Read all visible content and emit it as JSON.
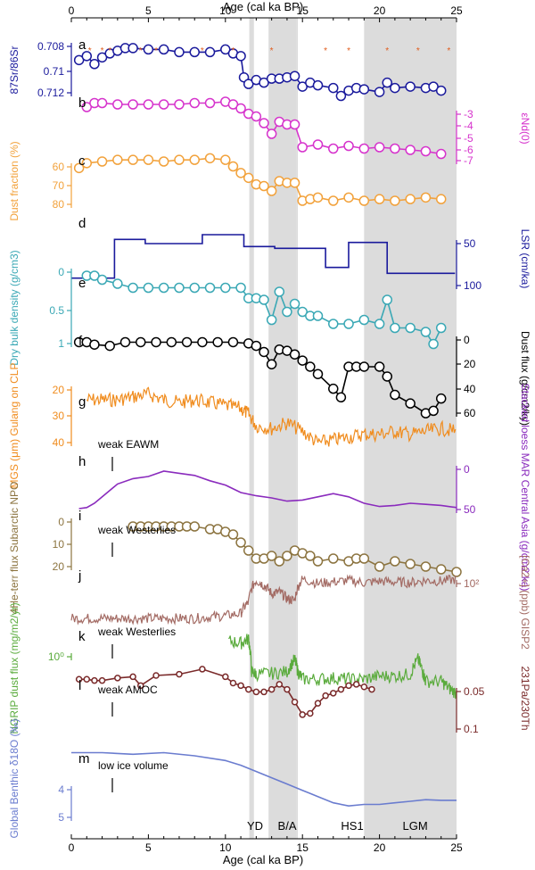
{
  "figure": {
    "top_axis_label": "Age (cal ka BP)",
    "bottom_axis_label": "Age (cal ka BP)",
    "age_ticks": [
      "0",
      "5",
      "10",
      "15",
      "20",
      "25"
    ],
    "panel_letters": [
      "a",
      "b",
      "c",
      "d",
      "e",
      "f",
      "g",
      "h",
      "i",
      "j",
      "k",
      "l",
      "m"
    ],
    "shading_labels": [
      "YD",
      "B/A",
      "HS1",
      "LGM"
    ],
    "annotations": [
      "weak EAWM",
      "weak Westerlies",
      "weak Westerlies",
      "weak AMOC",
      "low ice volume"
    ]
  },
  "chart_data": [
    {
      "id": "a",
      "type": "line",
      "ylabel": "87Sr/86Sr",
      "side": "left",
      "color": "#1a1a9c",
      "ticks": [
        "0.708",
        "0.71",
        "0.712"
      ],
      "ylim": [
        0.708,
        0.7125
      ],
      "inverted": true,
      "x": [
        0.5,
        1,
        1.5,
        2,
        2.5,
        3,
        3.5,
        4,
        5,
        6,
        7,
        8,
        9,
        10,
        10.5,
        11,
        11.2,
        11.5,
        12,
        12.5,
        13,
        13.5,
        14,
        14.5,
        15,
        15.5,
        16,
        17,
        17.5,
        18,
        18.5,
        19,
        20,
        20.5,
        21,
        22,
        23,
        23.5,
        24
      ],
      "y": [
        0.7095,
        0.7092,
        0.7098,
        0.7093,
        0.709,
        0.7088,
        0.7086,
        0.7086,
        0.7087,
        0.7087,
        0.7089,
        0.7089,
        0.7089,
        0.7087,
        0.709,
        0.7092,
        0.7108,
        0.7113,
        0.711,
        0.7112,
        0.7109,
        0.7109,
        0.7108,
        0.7107,
        0.7115,
        0.7112,
        0.7114,
        0.7116,
        0.7122,
        0.7118,
        0.7116,
        0.7117,
        0.7119,
        0.7112,
        0.7116,
        0.7115,
        0.7116,
        0.7115,
        0.7118
      ]
    },
    {
      "id": "b",
      "type": "line",
      "ylabel": "εNd(0)",
      "side": "right",
      "color": "#d633cc",
      "ticks": [
        "-3",
        "-4",
        "-5",
        "-6",
        "-7"
      ],
      "ylim": [
        -2.5,
        -7.3
      ],
      "inverted": false,
      "x": [
        1,
        1.5,
        2,
        3,
        4,
        5,
        6,
        7,
        8,
        9,
        10,
        10.5,
        11,
        11.5,
        12,
        12.5,
        13,
        13.5,
        14,
        14.5,
        15,
        16,
        17,
        18,
        19,
        20,
        21,
        22,
        23,
        24
      ],
      "y": [
        -3.3,
        -3.0,
        -3.0,
        -3.1,
        -3.1,
        -3.1,
        -3.1,
        -3.1,
        -3.0,
        -3.0,
        -2.9,
        -3.1,
        -3.4,
        -3.8,
        -4.0,
        -4.5,
        -5.3,
        -4.4,
        -4.6,
        -4.6,
        -6.3,
        -6.1,
        -6.4,
        -6.2,
        -6.4,
        -6.3,
        -6.4,
        -6.5,
        -6.6,
        -6.8
      ]
    },
    {
      "id": "c",
      "type": "line",
      "ylabel": "Dust fraction (%)",
      "side": "left",
      "color": "#f2a23c",
      "ticks": [
        "60",
        "70",
        "80"
      ],
      "ylim": [
        52,
        88
      ],
      "inverted": true,
      "x": [
        0.5,
        1,
        2,
        3,
        4,
        5,
        6,
        7,
        8,
        9,
        10,
        10.5,
        11,
        11.5,
        12,
        12.5,
        13,
        13.5,
        14,
        14.5,
        15,
        15.5,
        16,
        17,
        18,
        19,
        20,
        21,
        22,
        23,
        24
      ],
      "y": [
        62,
        59,
        58,
        57,
        57,
        57,
        58,
        57,
        57,
        56,
        57,
        61,
        65,
        68,
        72,
        73,
        76,
        70,
        71,
        71,
        82,
        81,
        80,
        82,
        80,
        82,
        81,
        82,
        81,
        80,
        81
      ]
    },
    {
      "id": "d",
      "type": "line",
      "step": true,
      "ylabel": "LSR (cm/ka)",
      "side": "right",
      "color": "#1a1a9c",
      "ticks": [
        "50",
        "100"
      ],
      "ylim": [
        15,
        120
      ],
      "inverted": true,
      "x": [
        0,
        2.8,
        2.8,
        4.8,
        4.8,
        8.5,
        8.5,
        11.2,
        11.2,
        13.2,
        13.2,
        16.5,
        16.5,
        18,
        18,
        20.5,
        20.5,
        24.9
      ],
      "y": [
        100,
        100,
        35,
        35,
        42,
        42,
        27,
        27,
        47,
        47,
        50,
        50,
        82,
        82,
        40,
        40,
        92,
        92
      ]
    },
    {
      "id": "e",
      "type": "line",
      "ylabel": "Dry bulk density (g/cm3)",
      "side": "left",
      "color": "#3aa8b5",
      "ticks": [
        "0",
        "0.5",
        "1"
      ],
      "ylim": [
        0,
        1
      ],
      "inverted": true,
      "x": [
        1,
        1.5,
        2,
        3,
        4,
        5,
        6,
        7,
        8,
        9,
        10,
        11,
        11.5,
        12,
        12.5,
        13,
        13.5,
        14,
        14.5,
        15,
        15.5,
        16,
        17,
        18,
        19,
        20,
        20.5,
        21,
        22,
        23,
        23.5,
        24
      ],
      "y": [
        0.1,
        0.1,
        0.15,
        0.2,
        0.25,
        0.25,
        0.25,
        0.25,
        0.25,
        0.25,
        0.25,
        0.25,
        0.38,
        0.38,
        0.4,
        0.65,
        0.3,
        0.55,
        0.45,
        0.55,
        0.6,
        0.6,
        0.7,
        0.7,
        0.65,
        0.7,
        0.4,
        0.75,
        0.75,
        0.8,
        0.95,
        0.75
      ]
    },
    {
      "id": "f",
      "type": "line",
      "ylabel": "Dust flux (g/cm2/ky)",
      "side": "right",
      "color": "#000000",
      "ticks": [
        "0",
        "20",
        "40",
        "60"
      ],
      "ylim": [
        -2,
        65
      ],
      "inverted": true,
      "x": [
        0.5,
        1,
        1.5,
        2.5,
        3.5,
        4.5,
        5.5,
        6.5,
        7.5,
        8.5,
        9.5,
        10.5,
        11.5,
        12,
        12.5,
        13,
        13.5,
        14,
        14.5,
        15,
        15.5,
        16,
        17,
        17.5,
        18,
        18.5,
        19,
        20,
        20.5,
        21,
        22,
        23,
        23.5,
        24
      ],
      "y": [
        2,
        2,
        4,
        5,
        2,
        2,
        2,
        2,
        2,
        2,
        2,
        2,
        3,
        5,
        10,
        20,
        8,
        9,
        12,
        17,
        22,
        28,
        40,
        47,
        22,
        22,
        22,
        22,
        30,
        45,
        52,
        60,
        58,
        48
      ]
    },
    {
      "id": "g",
      "type": "line",
      "ylabel": "MGS (μm) Gulang on CLP",
      "side": "left",
      "color": "#f08c1e",
      "ticks": [
        "20",
        "30",
        "40"
      ],
      "ylim": [
        16,
        44
      ],
      "inverted": true,
      "noise": 2.5,
      "x": [
        1,
        2,
        3,
        4,
        5,
        6,
        7,
        8,
        9,
        10,
        11,
        11.5,
        12,
        13,
        14,
        15,
        16,
        17,
        18,
        19,
        20,
        21,
        22,
        23,
        24,
        25
      ],
      "y": [
        21,
        21,
        21,
        20,
        19,
        21,
        22,
        21,
        22,
        23,
        24,
        26,
        30,
        31,
        29,
        32,
        36,
        35,
        34,
        33,
        33,
        32,
        33,
        32,
        31,
        32
      ]
    },
    {
      "id": "h",
      "type": "line",
      "step": true,
      "ylabel": "Stacked loess MAR Central Asia (g/cm2 ka)",
      "side": "right",
      "color": "#8a2bbd",
      "ticks": [
        "0",
        "50"
      ],
      "ylim": [
        -5,
        55
      ],
      "inverted": false,
      "x": [
        0.5,
        1,
        1.5,
        2,
        3,
        4,
        5,
        6,
        7,
        8,
        9,
        10,
        11,
        12,
        13,
        14,
        15,
        16,
        17,
        18,
        19,
        20,
        21,
        22,
        23,
        24,
        25
      ],
      "y": [
        45,
        44,
        40,
        34,
        22,
        17,
        15,
        10,
        12,
        14,
        19,
        23,
        30,
        33,
        35,
        38,
        37,
        34,
        31,
        34,
        40,
        43,
        42,
        40,
        41,
        42,
        44
      ]
    },
    {
      "id": "i",
      "type": "line",
      "ylabel": "4He-terr flux Subarctic NPO",
      "side": "left",
      "color": "#8c7440",
      "ticks": [
        "0",
        "10",
        "20"
      ],
      "ylim": [
        -1,
        23
      ],
      "inverted": true,
      "x": [
        4,
        4.5,
        5,
        5.5,
        6,
        6.5,
        7,
        7.5,
        8,
        9,
        9.5,
        10,
        10.5,
        11,
        11.5,
        12,
        12.5,
        13,
        13.5,
        14,
        14.5,
        15,
        15.5,
        16,
        17,
        18,
        18.5,
        19,
        20,
        21,
        22,
        23,
        24,
        25
      ],
      "y": [
        3,
        3,
        3,
        3,
        3,
        3,
        3,
        3,
        3,
        4,
        4,
        5,
        6,
        9,
        12,
        15,
        15,
        14,
        16,
        14,
        12,
        13,
        14,
        16,
        15,
        16,
        15,
        15,
        18,
        16,
        17,
        18,
        19,
        20
      ]
    },
    {
      "id": "j",
      "type": "line",
      "ylabel": "[Ca2+] (ppb) GISP2",
      "side": "right",
      "color": "#a36b64",
      "ticks": [
        "10^2"
      ],
      "ylim": [
        2,
        450
      ],
      "log": true,
      "inverted": false,
      "noise": 0.18,
      "x": [
        0,
        1,
        2,
        3,
        4,
        5,
        6,
        7,
        8,
        9,
        10,
        11,
        11.5,
        12,
        12.5,
        13,
        13.5,
        14,
        14.5,
        15,
        16,
        17,
        18,
        19,
        20,
        21,
        22,
        23,
        24,
        25
      ],
      "y": [
        8,
        8,
        8,
        8,
        8,
        8,
        8,
        8,
        8,
        9,
        10,
        12,
        30,
        180,
        120,
        60,
        70,
        40,
        35,
        200,
        140,
        160,
        180,
        150,
        170,
        160,
        150,
        180,
        170,
        200
      ]
    },
    {
      "id": "k",
      "type": "line",
      "ylabel": "NGRIP dust flux (mg/m2/yr)",
      "side": "left",
      "color": "#5aab3c",
      "ticks": [
        "10^0"
      ],
      "ylim": [
        0.08,
        1.5
      ],
      "log": true,
      "inverted": false,
      "noise": 0.12,
      "x": [
        10.2,
        11,
        11.5,
        11.7,
        12,
        13,
        14,
        14.5,
        14.7,
        15,
        16,
        17,
        18,
        19,
        20,
        21,
        22,
        22.5,
        22.8,
        23,
        24,
        24.5,
        25
      ],
      "y": [
        1.1,
        1.0,
        1.2,
        0.3,
        0.27,
        0.28,
        0.3,
        0.5,
        0.3,
        0.22,
        0.22,
        0.23,
        0.22,
        0.22,
        0.25,
        0.25,
        0.27,
        0.5,
        0.3,
        0.2,
        0.2,
        0.15,
        0.12
      ]
    },
    {
      "id": "l",
      "type": "line",
      "ylabel": "231Pa/230Th",
      "side": "right",
      "color": "#7a2a2a",
      "ticks": [
        "0.05",
        "0.1"
      ],
      "ylim": [
        0.045,
        0.105
      ],
      "inverted": true,
      "x": [
        0.5,
        1,
        1.5,
        2,
        3,
        4,
        4.5,
        5.5,
        7,
        8.5,
        10,
        10.5,
        11,
        11.5,
        12,
        12.5,
        13,
        13.5,
        14,
        14.5,
        15,
        15.5,
        16,
        16.5,
        17,
        17.5,
        18,
        18.5,
        19,
        19.5
      ],
      "y": [
        0.06,
        0.06,
        0.061,
        0.061,
        0.059,
        0.058,
        0.065,
        0.057,
        0.056,
        0.052,
        0.058,
        0.063,
        0.065,
        0.068,
        0.07,
        0.07,
        0.068,
        0.064,
        0.068,
        0.078,
        0.088,
        0.087,
        0.079,
        0.073,
        0.071,
        0.068,
        0.065,
        0.064,
        0.066,
        0.068
      ]
    },
    {
      "id": "m",
      "type": "line",
      "ylabel": "Global Benthic δ18O (‰)",
      "side": "left",
      "color": "#6a7ccf",
      "ticks": [
        "4",
        "5"
      ],
      "ylim": [
        3.2,
        5.05
      ],
      "inverted": true,
      "x": [
        0,
        2,
        4,
        6,
        8,
        10,
        11,
        12,
        13,
        14,
        15,
        16,
        17,
        18,
        19,
        20,
        21,
        22,
        23,
        24,
        25
      ],
      "y": [
        3.3,
        3.3,
        3.35,
        3.3,
        3.4,
        3.55,
        3.7,
        3.9,
        4.1,
        4.3,
        4.5,
        4.7,
        4.9,
        5.0,
        4.95,
        4.95,
        4.9,
        4.85,
        4.8,
        4.82,
        4.82
      ]
    }
  ]
}
